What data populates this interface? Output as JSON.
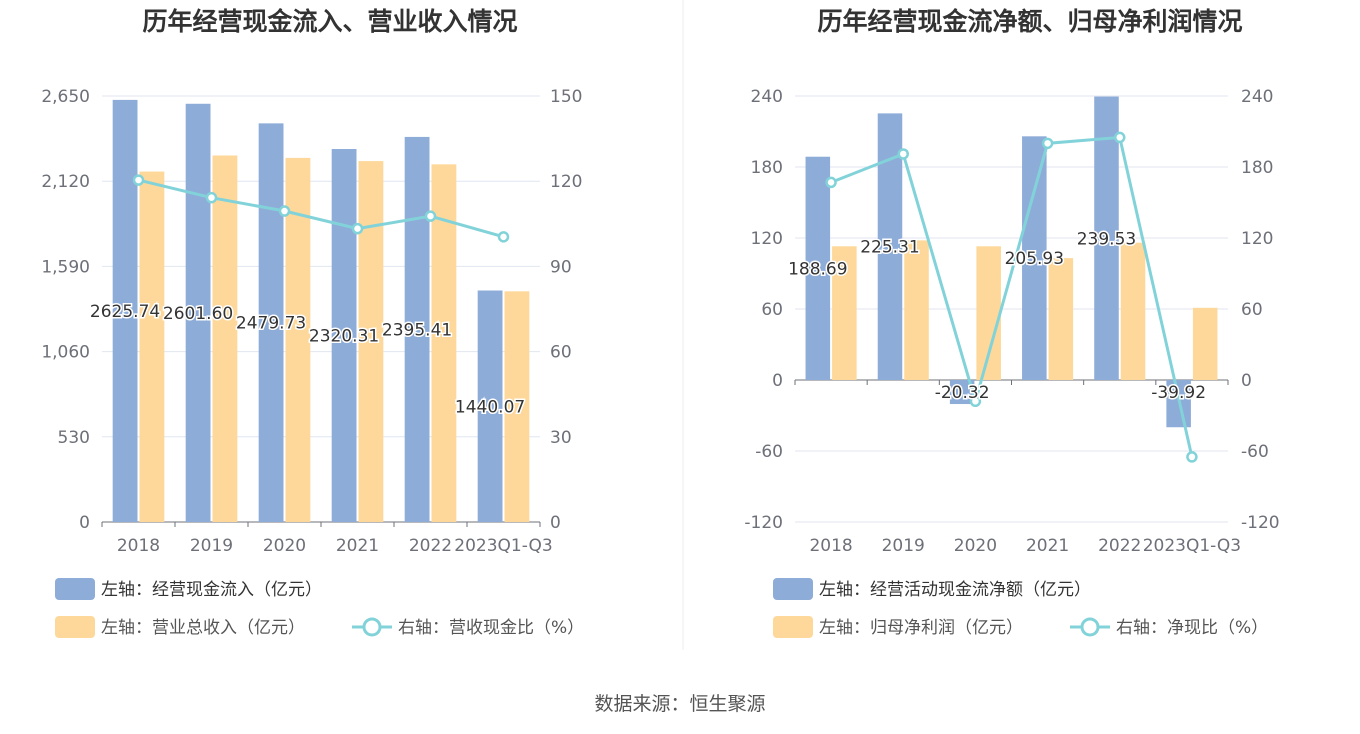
{
  "source_text": "数据来源：恒生聚源",
  "colors": {
    "bar_primary": "#8eacd8",
    "bar_secondary": "#fdd89a",
    "line": "#82d3d9",
    "grid": "#e0e6f1",
    "axis": "#6e7079"
  },
  "chart_data": [
    {
      "type": "bar",
      "title": "历年经营现金流入、营业收入情况",
      "categories": [
        "2018",
        "2019",
        "2020",
        "2021",
        "2022",
        "2023Q1-Q3"
      ],
      "left_axis": {
        "ticks": [
          "0",
          "530",
          "1,060",
          "1,590",
          "2,120",
          "2,650"
        ],
        "ylim": [
          0,
          2650
        ]
      },
      "right_axis": {
        "ticks": [
          "0",
          "30",
          "60",
          "90",
          "120",
          "150"
        ],
        "ylim": [
          0,
          150
        ]
      },
      "series": [
        {
          "name": "经营现金流入",
          "legend": "左轴：经营现金流入（亿元）",
          "axis": "left",
          "kind": "bar",
          "values": [
            2625.74,
            2601.6,
            2479.73,
            2320.31,
            2395.41,
            1440.07
          ],
          "labels": [
            "2625.74",
            "2601.60",
            "2479.73",
            "2320.31",
            "2395.41",
            "1440.07"
          ]
        },
        {
          "name": "营业总收入",
          "legend": "左轴：营业总收入（亿元）",
          "axis": "left",
          "kind": "bar",
          "values": [
            2180,
            2280,
            2265,
            2245,
            2225,
            1435
          ]
        },
        {
          "name": "营收现金比",
          "legend": "右轴：营收现金比（%）",
          "axis": "right",
          "kind": "line",
          "values": [
            120.4,
            114.2,
            109.5,
            103.3,
            107.7,
            100.4
          ]
        }
      ]
    },
    {
      "type": "bar",
      "title": "历年经营现金流净额、归母净利润情况",
      "categories": [
        "2018",
        "2019",
        "2020",
        "2021",
        "2022",
        "2023Q1-Q3"
      ],
      "left_axis": {
        "ticks": [
          "-120",
          "-60",
          "0",
          "60",
          "120",
          "180",
          "240"
        ],
        "ylim": [
          -120,
          240
        ]
      },
      "right_axis": {
        "ticks": [
          "-120",
          "-60",
          "0",
          "60",
          "120",
          "180",
          "240"
        ],
        "ylim": [
          -120,
          240
        ]
      },
      "series": [
        {
          "name": "经营活动现金流净额",
          "legend": "左轴：经营活动现金流净额（亿元）",
          "axis": "left",
          "kind": "bar",
          "values": [
            188.69,
            225.31,
            -20.32,
            205.93,
            239.53,
            -39.92
          ],
          "labels": [
            "188.69",
            "225.31",
            "-20.32",
            "205.93",
            "239.53",
            "-39.92"
          ]
        },
        {
          "name": "归母净利润",
          "legend": "左轴：归母净利润（亿元）",
          "axis": "left",
          "kind": "bar",
          "values": [
            113,
            118,
            113,
            103,
            116,
            61
          ]
        },
        {
          "name": "净现比",
          "legend": "右轴：净现比（%）",
          "axis": "right",
          "kind": "line",
          "values": [
            167,
            191,
            -18,
            200,
            205,
            -65
          ]
        }
      ]
    }
  ]
}
